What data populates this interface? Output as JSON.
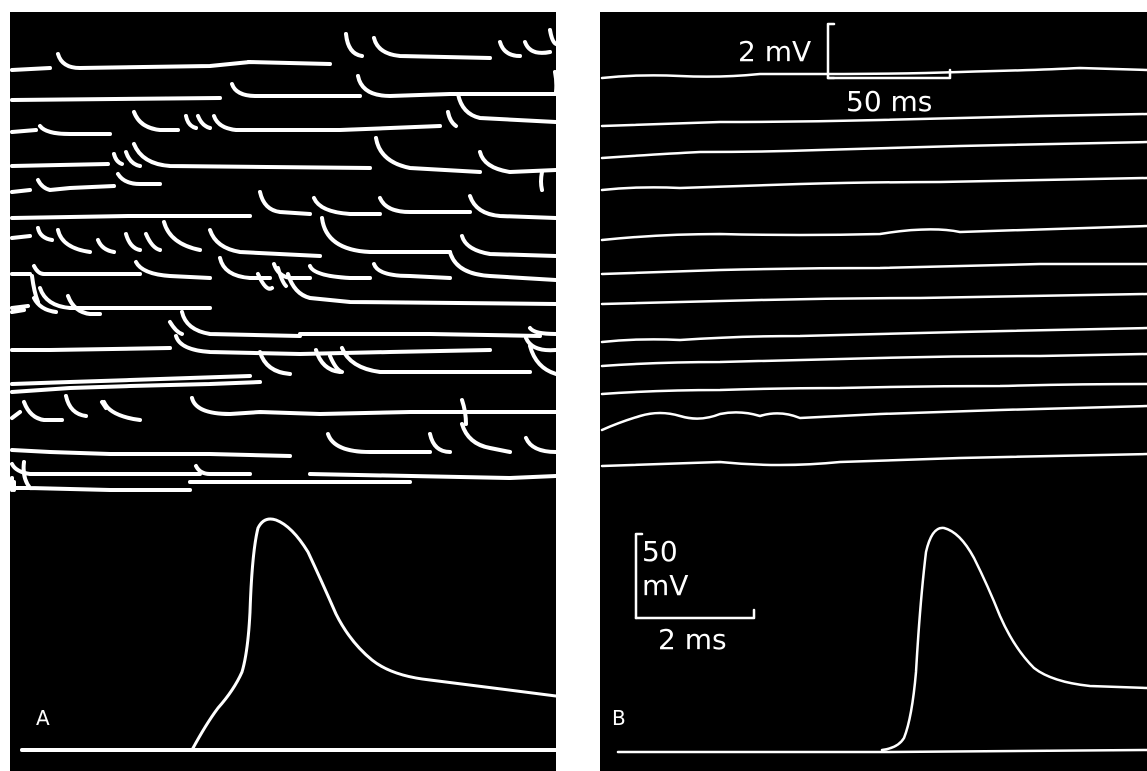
{
  "figure": {
    "panels": [
      {
        "id": "A",
        "label": "A",
        "trace_color": "#ffffff",
        "background_color": "#000000"
      },
      {
        "id": "B",
        "label": "B",
        "trace_color": "#ffffff",
        "background_color": "#000000",
        "scale_bars": {
          "upper_voltage": "2 mV",
          "upper_time": "50 ms",
          "lower_voltage_value": "50",
          "lower_voltage_unit": "mV",
          "lower_time": "2 ms"
        }
      }
    ]
  }
}
